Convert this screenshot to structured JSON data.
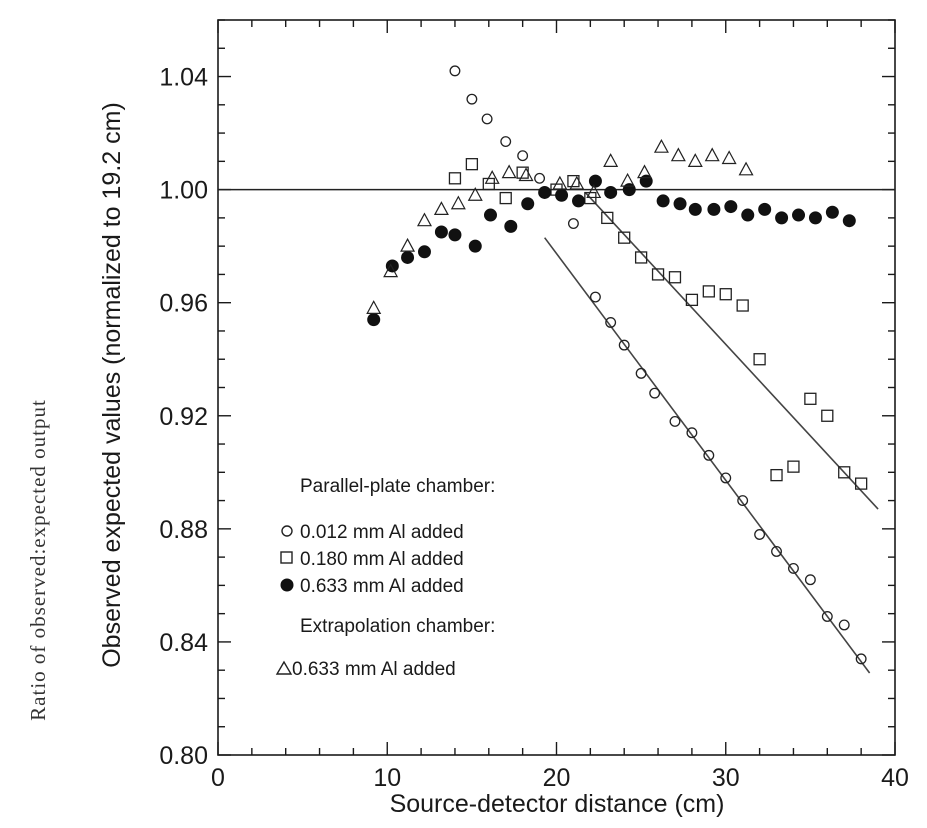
{
  "outer_label": "Ratio of observed:expected output",
  "chart_data": {
    "type": "scatter",
    "title": "",
    "xlabel": "Source-detector distance (cm)",
    "ylabel": "Observed expected values (normalized to 19.2 cm)",
    "xlim": [
      0,
      40
    ],
    "ylim": [
      0.8,
      1.06
    ],
    "x_ticks": [
      0,
      10,
      20,
      30,
      40
    ],
    "x_tick_labels": [
      "0",
      "10",
      "20",
      "30",
      "40"
    ],
    "y_ticks": [
      0.8,
      0.84,
      0.88,
      0.92,
      0.96,
      1.0,
      1.04
    ],
    "y_tick_labels": [
      "0.80",
      "0.84",
      "0.88",
      "0.92",
      "0.96",
      "1.00",
      "1.04"
    ],
    "reference_line": 1.0,
    "legend": {
      "group1_title": "Parallel-plate chamber:",
      "group2_title": "Extrapolation chamber:",
      "placement": "lower-left"
    },
    "series": [
      {
        "name": "0.012 mm Al added",
        "marker": "open-circle",
        "points": [
          [
            14.0,
            1.042
          ],
          [
            15.0,
            1.032
          ],
          [
            15.9,
            1.025
          ],
          [
            17.0,
            1.017
          ],
          [
            18.0,
            1.012
          ],
          [
            19.0,
            1.004
          ],
          [
            21.0,
            0.988
          ],
          [
            22.3,
            0.962
          ],
          [
            23.2,
            0.953
          ],
          [
            24.0,
            0.945
          ],
          [
            25.0,
            0.935
          ],
          [
            25.8,
            0.928
          ],
          [
            27.0,
            0.918
          ],
          [
            28.0,
            0.914
          ],
          [
            29.0,
            0.906
          ],
          [
            30.0,
            0.898
          ],
          [
            31.0,
            0.89
          ],
          [
            32.0,
            0.878
          ],
          [
            33.0,
            0.872
          ],
          [
            34.0,
            0.866
          ],
          [
            35.0,
            0.862
          ],
          [
            36.0,
            0.849
          ],
          [
            37.0,
            0.846
          ],
          [
            38.0,
            0.834
          ]
        ]
      },
      {
        "name": "0.180 mm Al added",
        "marker": "open-square",
        "points": [
          [
            14.0,
            1.004
          ],
          [
            15.0,
            1.009
          ],
          [
            16.0,
            1.002
          ],
          [
            17.0,
            0.997
          ],
          [
            18.0,
            1.006
          ],
          [
            20.0,
            1.0
          ],
          [
            21.0,
            1.003
          ],
          [
            22.0,
            0.997
          ],
          [
            23.0,
            0.99
          ],
          [
            24.0,
            0.983
          ],
          [
            25.0,
            0.976
          ],
          [
            26.0,
            0.97
          ],
          [
            27.0,
            0.969
          ],
          [
            28.0,
            0.961
          ],
          [
            29.0,
            0.964
          ],
          [
            30.0,
            0.963
          ],
          [
            31.0,
            0.959
          ],
          [
            32.0,
            0.94
          ],
          [
            33.0,
            0.899
          ],
          [
            34.0,
            0.902
          ],
          [
            35.0,
            0.926
          ],
          [
            36.0,
            0.92
          ],
          [
            37.0,
            0.9
          ],
          [
            38.0,
            0.896
          ]
        ]
      },
      {
        "name": "0.633 mm Al added",
        "marker": "filled-circle",
        "points": [
          [
            9.2,
            0.954
          ],
          [
            10.3,
            0.973
          ],
          [
            11.2,
            0.976
          ],
          [
            12.2,
            0.978
          ],
          [
            13.2,
            0.985
          ],
          [
            14.0,
            0.984
          ],
          [
            15.2,
            0.98
          ],
          [
            16.1,
            0.991
          ],
          [
            17.3,
            0.987
          ],
          [
            18.3,
            0.995
          ],
          [
            19.3,
            0.999
          ],
          [
            20.3,
            0.998
          ],
          [
            21.3,
            0.996
          ],
          [
            22.3,
            1.003
          ],
          [
            23.2,
            0.999
          ],
          [
            24.3,
            1.0
          ],
          [
            25.3,
            1.003
          ],
          [
            26.3,
            0.996
          ],
          [
            27.3,
            0.995
          ],
          [
            28.2,
            0.993
          ],
          [
            29.3,
            0.993
          ],
          [
            30.3,
            0.994
          ],
          [
            31.3,
            0.991
          ],
          [
            32.3,
            0.993
          ],
          [
            33.3,
            0.99
          ],
          [
            34.3,
            0.991
          ],
          [
            35.3,
            0.99
          ],
          [
            36.3,
            0.992
          ],
          [
            37.3,
            0.989
          ]
        ]
      },
      {
        "name": "0.633 mm Al added",
        "marker": "open-triangle",
        "points": [
          [
            9.2,
            0.958
          ],
          [
            10.2,
            0.971
          ],
          [
            11.2,
            0.98
          ],
          [
            12.2,
            0.989
          ],
          [
            13.2,
            0.993
          ],
          [
            14.2,
            0.995
          ],
          [
            15.2,
            0.998
          ],
          [
            16.2,
            1.004
          ],
          [
            17.2,
            1.006
          ],
          [
            18.2,
            1.005
          ],
          [
            20.2,
            1.002
          ],
          [
            21.2,
            1.002
          ],
          [
            22.2,
            0.999
          ],
          [
            23.2,
            1.01
          ],
          [
            24.2,
            1.003
          ],
          [
            25.2,
            1.006
          ],
          [
            26.2,
            1.015
          ],
          [
            27.2,
            1.012
          ],
          [
            28.2,
            1.01
          ],
          [
            29.2,
            1.012
          ],
          [
            30.2,
            1.011
          ],
          [
            31.2,
            1.007
          ]
        ]
      }
    ],
    "fit_lines": [
      {
        "series": "0.012 mm Al added",
        "x": [
          19.3,
          38.5
        ],
        "y": [
          0.983,
          0.829
        ]
      },
      {
        "series": "0.180 mm Al added",
        "x": [
          21.7,
          39.0
        ],
        "y": [
          0.999,
          0.887
        ]
      }
    ]
  }
}
